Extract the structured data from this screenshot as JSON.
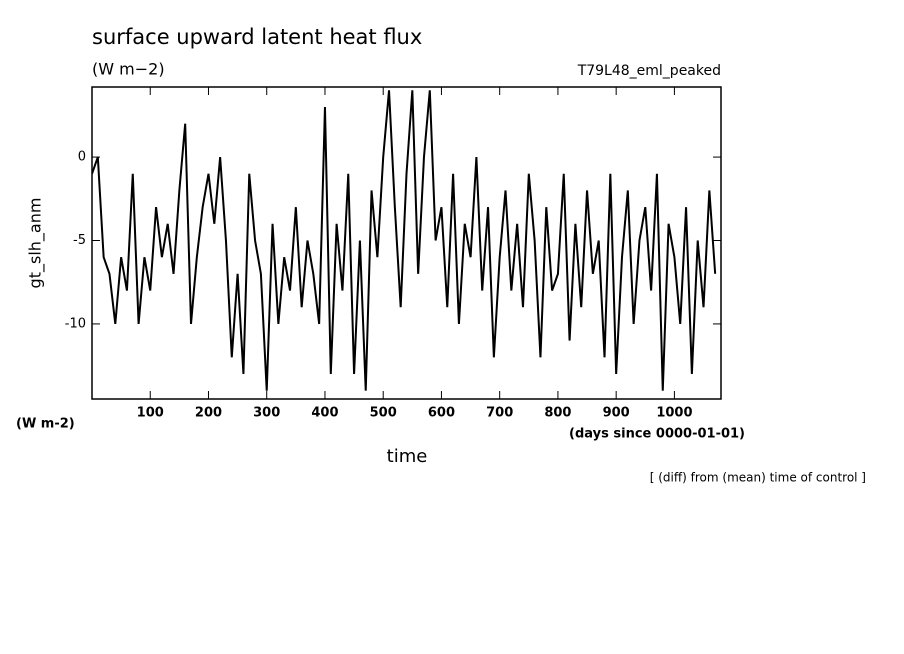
{
  "chart_data": {
    "type": "line",
    "title": "surface upward latent heat flux",
    "subtitle": "(W m−2)",
    "annotation": "T79L48_eml_peaked",
    "y_label": "gt_slh_anm",
    "y_units": "(W m-2)",
    "x_label": "time",
    "x_units": "(days since 0000-01-01)",
    "footnote": "[ (diff) from (mean) time of control ]",
    "x": [
      0,
      10,
      20,
      30,
      40,
      50,
      60,
      70,
      80,
      90,
      100,
      110,
      120,
      130,
      140,
      150,
      160,
      170,
      180,
      190,
      200,
      210,
      220,
      230,
      240,
      250,
      260,
      270,
      280,
      290,
      300,
      310,
      320,
      330,
      340,
      350,
      360,
      370,
      380,
      390,
      400,
      410,
      420,
      430,
      440,
      450,
      460,
      470,
      480,
      490,
      500,
      510,
      520,
      530,
      540,
      550,
      560,
      570,
      580,
      590,
      600,
      610,
      620,
      630,
      640,
      650,
      660,
      670,
      680,
      690,
      700,
      710,
      720,
      730,
      740,
      750,
      760,
      770,
      780,
      790,
      800,
      810,
      820,
      830,
      840,
      850,
      860,
      870,
      880,
      890,
      900,
      910,
      920,
      930,
      940,
      950,
      960,
      970,
      980,
      990,
      1000,
      1010,
      1020,
      1030,
      1040,
      1050,
      1060,
      1070
    ],
    "series": [
      {
        "name": "gt_slh_anm",
        "color": "#000000",
        "values": [
          -1,
          0,
          -6,
          -7,
          -10,
          -6,
          -8,
          -1,
          -10,
          -6,
          -8,
          -3,
          -6,
          -4,
          -7,
          -2,
          2,
          -10,
          -6,
          -3,
          -1,
          -4,
          0,
          -5,
          -12,
          -7,
          -13,
          -1,
          -5,
          -7,
          -14,
          -4,
          -10,
          -6,
          -8,
          -3,
          -9,
          -5,
          -7,
          -10,
          3,
          -13,
          -4,
          -8,
          -1,
          -13,
          -5,
          -14,
          -2,
          -6,
          0,
          4,
          -3,
          -9,
          -1,
          4,
          -7,
          0,
          4,
          -5,
          -3,
          -9,
          -1,
          -10,
          -4,
          -6,
          0,
          -8,
          -3,
          -12,
          -6,
          -2,
          -8,
          -4,
          -9,
          -1,
          -5,
          -12,
          -3,
          -8,
          -7,
          -1,
          -11,
          -4,
          -9,
          -2,
          -7,
          -5,
          -12,
          -1,
          -13,
          -6,
          -2,
          -10,
          -5,
          -3,
          -8,
          -1,
          -14,
          -4,
          -6,
          -10,
          -3,
          -13,
          -5,
          -9,
          -2,
          -7
        ]
      }
    ],
    "xlim": [
      0,
      1080
    ],
    "xticks": [
      100,
      200,
      300,
      400,
      500,
      600,
      700,
      800,
      900,
      1000
    ],
    "ylim": [
      -14.5,
      4.2
    ],
    "yticks": [
      0,
      -5,
      -10
    ]
  }
}
